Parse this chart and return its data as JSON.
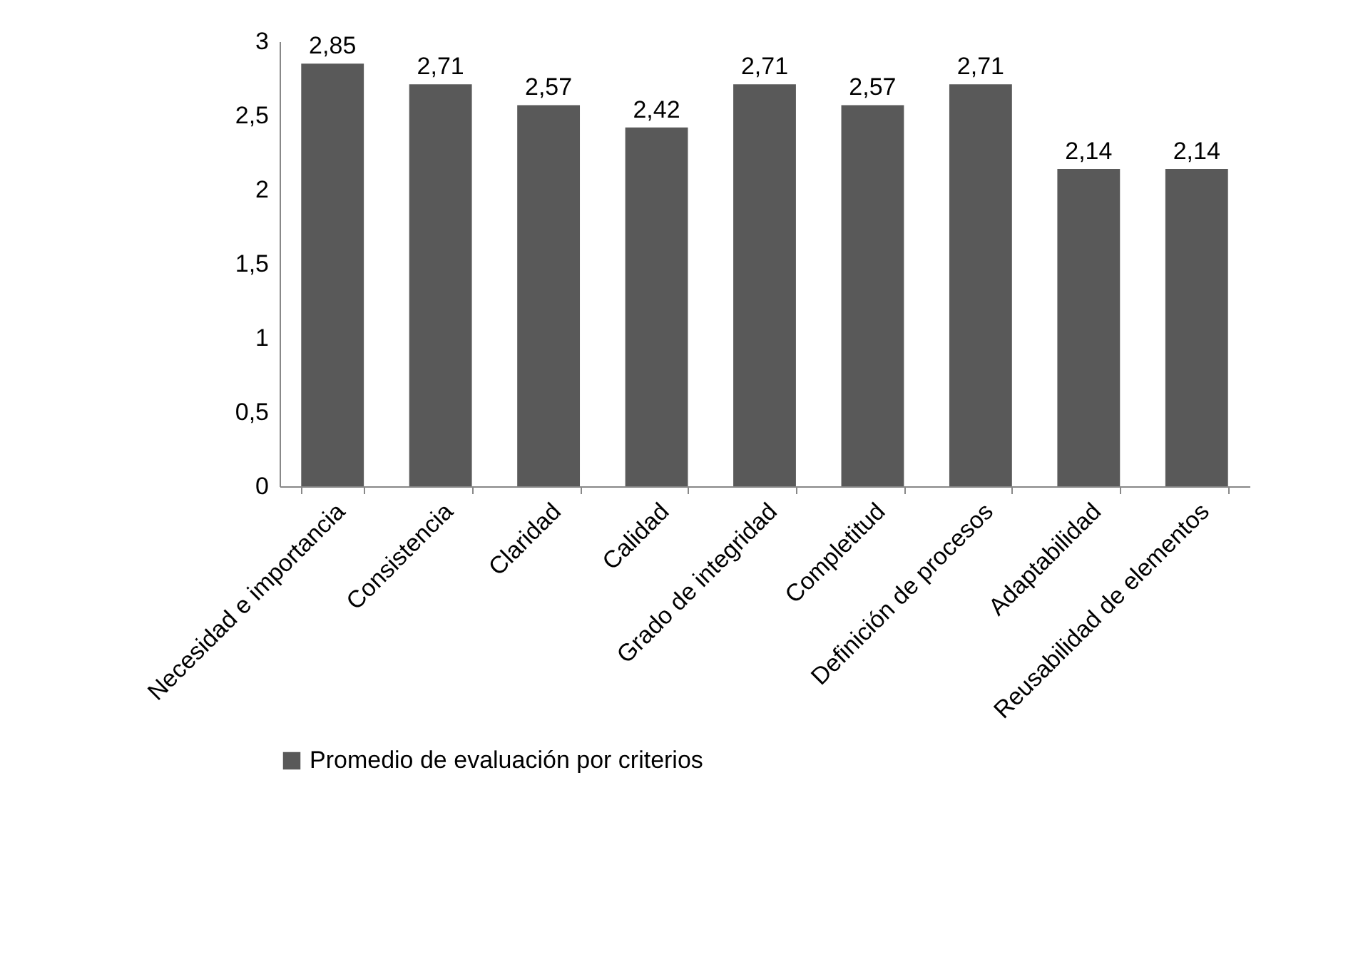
{
  "chart_data": {
    "type": "bar",
    "categories": [
      "Necesidad e importancia",
      "Consistencia",
      "Claridad",
      "Calidad",
      "Grado de integridad",
      "Completitud",
      "Definición de procesos",
      "Adaptabilidad",
      "Reusabilidad de elementos"
    ],
    "series": [
      {
        "name": "Promedio de evaluación por criterios",
        "color": "#595959",
        "values": [
          2.85,
          2.71,
          2.57,
          2.42,
          2.71,
          2.57,
          2.71,
          2.14,
          2.14
        ],
        "value_labels": [
          "2,85",
          "2,71",
          "2,57",
          "2,42",
          "2,71",
          "2,57",
          "2,71",
          "2,14",
          "2,14"
        ]
      }
    ],
    "ylim": [
      0,
      3
    ],
    "yticks": [
      0,
      {
        "value": 0.5,
        "label": "0,5"
      },
      1,
      {
        "value": 1.5,
        "label": "1,5"
      },
      2,
      {
        "value": 2.5,
        "label": "2,5"
      },
      3
    ],
    "legend": "bottom",
    "grid": false
  }
}
